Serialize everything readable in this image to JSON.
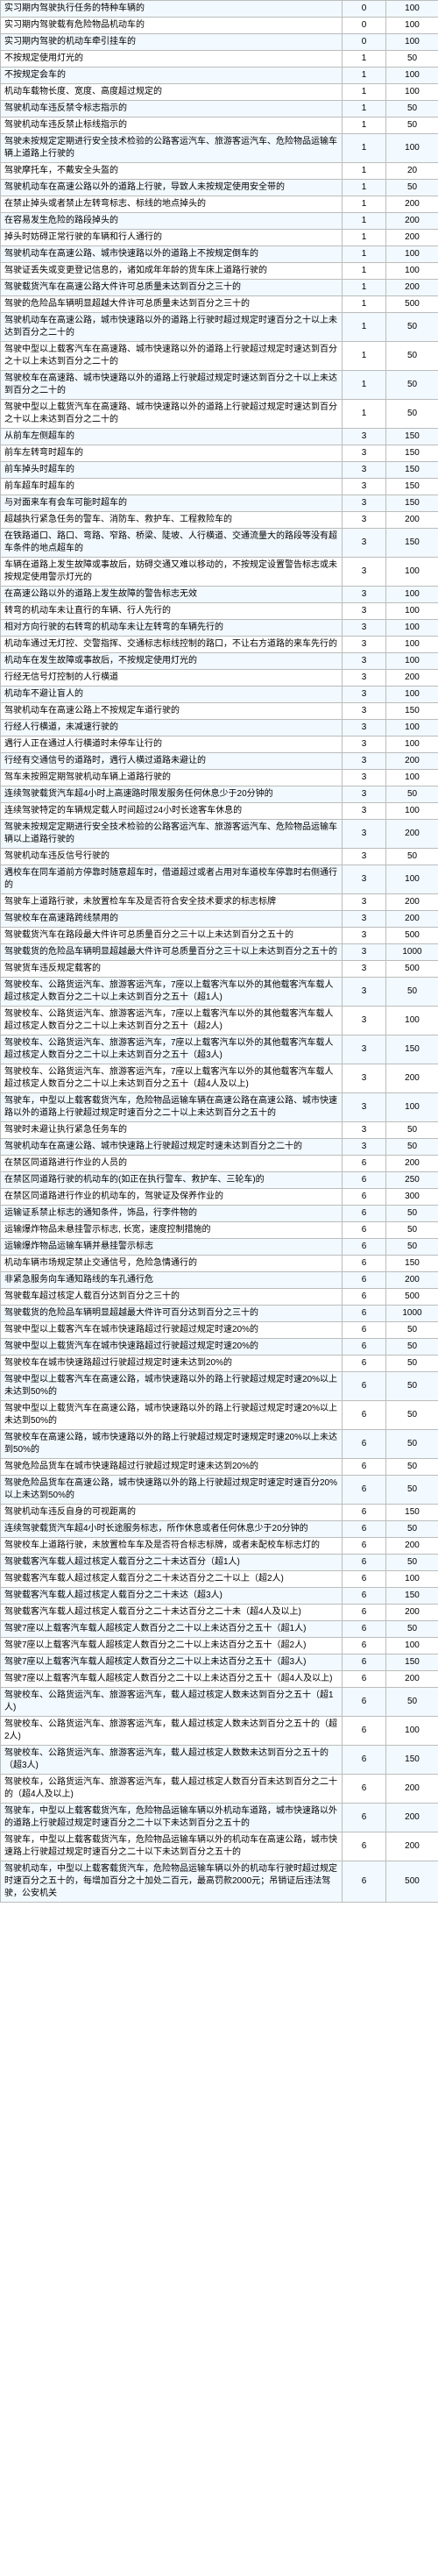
{
  "colors": {
    "altRow": "#f2f9ff",
    "border": "#bcbcbc",
    "text": "#000000",
    "plainRow": "#ffffff"
  },
  "fonts": {
    "family": "Microsoft YaHei, Arial, sans-serif",
    "sizePx": 10
  },
  "columns": {
    "widths": [
      "390px",
      "50px",
      "60px"
    ],
    "align": [
      "left",
      "center",
      "center"
    ]
  },
  "rows": [
    {
      "alt": true,
      "c": [
        "实习期内驾驶执行任务的特种车辆的",
        "0",
        "100"
      ]
    },
    {
      "alt": false,
      "c": [
        "实习期内驾驶载有危险物品机动车的",
        "0",
        "100"
      ]
    },
    {
      "alt": true,
      "c": [
        "实习期内驾驶的机动车牵引挂车的",
        "0",
        "100"
      ]
    },
    {
      "alt": false,
      "c": [
        "不按规定使用灯光的",
        "1",
        "50"
      ]
    },
    {
      "alt": true,
      "c": [
        "不按规定会车的",
        "1",
        "100"
      ]
    },
    {
      "alt": false,
      "c": [
        "机动车载物长度、宽度、高度超过规定的",
        "1",
        "100"
      ]
    },
    {
      "alt": true,
      "c": [
        "驾驶机动车违反禁令标志指示的",
        "1",
        "50"
      ]
    },
    {
      "alt": false,
      "c": [
        "驾驶机动车违反禁止标线指示的",
        "1",
        "50"
      ]
    },
    {
      "alt": true,
      "c": [
        "驾驶未按规定定期进行安全技术检验的公路客运汽车、旅游客运汽车、危险物品运输车辆上道路上行驶的",
        "1",
        "100"
      ]
    },
    {
      "alt": false,
      "c": [
        "驾驶摩托车，不戴安全头盔的",
        "1",
        "20"
      ]
    },
    {
      "alt": true,
      "c": [
        "驾驶机动车在高速公路以外的道路上行驶，导致人未按规定使用安全带的",
        "1",
        "50"
      ]
    },
    {
      "alt": false,
      "c": [
        "在禁止掉头或者禁止左转弯标志、标线的地点掉头的",
        "1",
        "200"
      ]
    },
    {
      "alt": true,
      "c": [
        "在容易发生危险的路段掉头的",
        "1",
        "200"
      ]
    },
    {
      "alt": false,
      "c": [
        "掉头时妨碍正常行驶的车辆和行人通行的",
        "1",
        "200"
      ]
    },
    {
      "alt": true,
      "c": [
        "驾驶机动车在高速公路、城市快速路以外的道路上不按规定倒车的",
        "1",
        "100"
      ]
    },
    {
      "alt": false,
      "c": [
        "驾驶证丢失或变更登记信息的，诸如成年年龄的货车床上道路行驶的",
        "1",
        "100"
      ]
    },
    {
      "alt": true,
      "c": [
        "驾驶载货汽车在高速公路大件许可总质量未达到百分之三十的",
        "1",
        "200"
      ]
    },
    {
      "alt": false,
      "c": [
        "驾驶的危险品车辆明显超越大件许可总质量未达到百分之三十的",
        "1",
        "500"
      ]
    },
    {
      "alt": true,
      "c": [
        "驾驶机动车在高速公路，城市快速路以外的道路上行驶时超过规定时速百分之十以上未达到百分之二十的",
        "1",
        "50"
      ]
    },
    {
      "alt": false,
      "c": [
        "驾驶中型以上载客汽车在高速路、城市快速路以外的道路上行驶超过规定时速达到百分之十以上未达到百分之二十的",
        "1",
        "50"
      ]
    },
    {
      "alt": true,
      "c": [
        "驾驶校车在高速路、城市快速路以外的道路上行驶超过规定时速达到百分之十以上未达到百分之二十的",
        "1",
        "50"
      ]
    },
    {
      "alt": false,
      "c": [
        "驾驶中型以上载货汽车在高速路、城市快速路以外的道路上行驶超过规定时速达到百分之十以上未达到百分之二十的",
        "1",
        "50"
      ]
    },
    {
      "alt": true,
      "c": [
        "从前车左侧超车的",
        "3",
        "150"
      ]
    },
    {
      "alt": false,
      "c": [
        "前车左转弯时超车的",
        "3",
        "150"
      ]
    },
    {
      "alt": true,
      "c": [
        "前车掉头时超车的",
        "3",
        "150"
      ]
    },
    {
      "alt": false,
      "c": [
        "前车超车时超车的",
        "3",
        "150"
      ]
    },
    {
      "alt": true,
      "c": [
        "与对面来车有会车可能时超车的",
        "3",
        "150"
      ]
    },
    {
      "alt": false,
      "c": [
        "超越执行紧急任务的警车、消防车、救护车、工程救险车的",
        "3",
        "200"
      ]
    },
    {
      "alt": true,
      "c": [
        "在铁路道口、路口、弯路、窄路、桥梁、陡坡、人行横道、交通流量大的路段等没有超车条件的地点超车的",
        "3",
        "150"
      ]
    },
    {
      "alt": false,
      "c": [
        "车辆在道路上发生故障或事故后，妨碍交通又难以移动的，不按规定设置警告标志或未按规定使用警示灯光的",
        "3",
        "100"
      ]
    },
    {
      "alt": true,
      "c": [
        "在高速公路以外的道路上发生故障的警告标志无效",
        "3",
        "100"
      ]
    },
    {
      "alt": false,
      "c": [
        "转弯的机动车未让直行的车辆、行人先行的",
        "3",
        "100"
      ]
    },
    {
      "alt": true,
      "c": [
        "相对方向行驶的右转弯的机动车未让左转弯的车辆先行的",
        "3",
        "100"
      ]
    },
    {
      "alt": false,
      "c": [
        "机动车通过无灯控、交警指挥、交通标志标线控制的路口，不让右方道路的来车先行的",
        "3",
        "100"
      ]
    },
    {
      "alt": true,
      "c": [
        "机动车在发生故障或事故后，不按规定使用灯光的",
        "3",
        "100"
      ]
    },
    {
      "alt": false,
      "c": [
        "行经无信号灯控制的人行横道",
        "3",
        "200"
      ]
    },
    {
      "alt": true,
      "c": [
        "机动车不避让盲人的",
        "3",
        "100"
      ]
    },
    {
      "alt": false,
      "c": [
        "驾驶机动车在高速公路上不按规定车道行驶的",
        "3",
        "150"
      ]
    },
    {
      "alt": true,
      "c": [
        "行经人行横道，未减速行驶的",
        "3",
        "100"
      ]
    },
    {
      "alt": false,
      "c": [
        "遇行人正在通过人行横道时未停车让行的",
        "3",
        "100"
      ]
    },
    {
      "alt": true,
      "c": [
        "行经有交通信号的道路时，遇行人横过道路未避让的",
        "3",
        "200"
      ]
    },
    {
      "alt": false,
      "c": [
        "驾车未按照定期驾驶机动车辆上道路行驶的",
        "3",
        "100"
      ]
    },
    {
      "alt": true,
      "c": [
        "连续驾驶载货汽车超4小时上高速路时限发服务任何休息少于20分钟的",
        "3",
        "50"
      ]
    },
    {
      "alt": false,
      "c": [
        "连续驾驶特定的车辆规定载人时间超过24小时长途客车休息的",
        "3",
        "100"
      ]
    },
    {
      "alt": true,
      "c": [
        "驾驶未按规定定期进行安全技术检验的公路客运汽车、旅游客运汽车、危险物品运输车辆以上道路行驶的",
        "3",
        "200"
      ]
    },
    {
      "alt": false,
      "c": [
        "驾驶机动车违反信号行驶的",
        "3",
        "50"
      ]
    },
    {
      "alt": true,
      "c": [
        "遇校车在同车道前方停靠时随意超车时，借道超过或者占用对车道校车停靠时右侧通行的",
        "3",
        "100"
      ]
    },
    {
      "alt": false,
      "c": [
        "驾驶车上道路行驶，未放置检车车及是否符合安全技术要求的标志标牌",
        "3",
        "200"
      ]
    },
    {
      "alt": true,
      "c": [
        "驾驶校车在高速路跨线禁用的",
        "3",
        "200"
      ]
    },
    {
      "alt": false,
      "c": [
        "驾驶载货汽车在路段最大件许可总质量百分之三十以上未达到百分之五十的",
        "3",
        "500"
      ]
    },
    {
      "alt": true,
      "c": [
        "驾驶载货的危险品车辆明显超越最大件许可总质量百分之三十以上未达到百分之五十的",
        "3",
        "1000"
      ]
    },
    {
      "alt": false,
      "c": [
        "驾驶货车违反规定载客的",
        "3",
        "500"
      ]
    },
    {
      "alt": true,
      "c": [
        "驾驶校车、公路货运汽车、旅游客运汽车，7座以上载客汽车以外的其他载客汽车载人超过核定人数百分之二十以上未达到百分之五十（超1人)",
        "3",
        "50"
      ]
    },
    {
      "alt": false,
      "c": [
        "驾驶校车、公路货运汽车、旅游客运汽车，7座以上载客汽车以外的其他载客汽车载人超过核定人数百分之二十以上未达到百分之五十（超2人)",
        "3",
        "100"
      ]
    },
    {
      "alt": true,
      "c": [
        "驾驶校车、公路货运汽车、旅游客运汽车，7座以上载客汽车以外的其他载客汽车载人超过核定人数百分之二十以上未达到百分之五十（超3人)",
        "3",
        "150"
      ]
    },
    {
      "alt": false,
      "c": [
        "驾驶校车、公路货运汽车、旅游客运汽车，7座以上载客汽车以外的其他载客汽车载人超过核定人数百分之二十以上未达到百分之五十（超4人及以上)",
        "3",
        "200"
      ]
    },
    {
      "alt": true,
      "c": [
        "驾驶车，中型以上载客载货汽车，危险物品运输车辆在高速公路在高速公路、城市快速路以外的道路上行驶超过规定时速百分之二十以上未达到百分之五十的",
        "3",
        "100"
      ]
    },
    {
      "alt": false,
      "c": [
        "驾驶时未避让执行紧急任务车的",
        "3",
        "50"
      ]
    },
    {
      "alt": true,
      "c": [
        "驾驶机动车在高速公路、城市快速路上行驶超过规定时速未达到百分之二十的",
        "3",
        "50"
      ]
    },
    {
      "alt": false,
      "c": [
        "在禁区同道路进行作业的人员的",
        "6",
        "200"
      ]
    },
    {
      "alt": true,
      "c": [
        "在禁区同道路行驶的机动车的(如正在执行警车、救护车、三轮车)的",
        "6",
        "250"
      ]
    },
    {
      "alt": false,
      "c": [
        "在禁区同道路进行作业的机动车的，驾驶证及保养作业的",
        "6",
        "300"
      ]
    },
    {
      "alt": true,
      "c": [
        "运输证系禁止标志的通知条件，饰品，行李件物的",
        "6",
        "50"
      ]
    },
    {
      "alt": false,
      "c": [
        "运输爆炸物品未悬挂警示标志, 长宽，速度控制措施的",
        "6",
        "50"
      ]
    },
    {
      "alt": true,
      "c": [
        "运输爆炸物品运输车辆并悬挂警示标志",
        "6",
        "50"
      ]
    },
    {
      "alt": false,
      "c": [
        "机动车辆市场规定禁止交通信号，危险急情通行的",
        "6",
        "150"
      ]
    },
    {
      "alt": true,
      "c": [
        "非紧急服务向车通知路线的车孔通行危",
        "6",
        "200"
      ]
    },
    {
      "alt": false,
      "c": [
        "驾驶载车超过核定人载百分达到百分之三十的",
        "6",
        "500"
      ]
    },
    {
      "alt": true,
      "c": [
        "驾驶载货的危险品车辆明显超越最大件许可百分达到百分之三十的",
        "6",
        "1000"
      ]
    },
    {
      "alt": false,
      "c": [
        "驾驶中型以上载客汽车在城市快速路超过行驶超过规定时速20%的",
        "6",
        "50"
      ]
    },
    {
      "alt": true,
      "c": [
        "驾驶中型以上载货汽车在城市快速路超过行驶超过规定时速20%的",
        "6",
        "50"
      ]
    },
    {
      "alt": false,
      "c": [
        "驾驶校车在城市快速路超过行驶超过规定时速未达到20%的",
        "6",
        "50"
      ]
    },
    {
      "alt": true,
      "c": [
        "驾驶中型以上载客汽车在高速公路，城市快速路以外的路上行驶超过规定时速20%以上未达到50%的",
        "6",
        "50"
      ]
    },
    {
      "alt": false,
      "c": [
        "驾驶中型以上载货汽车在高速公路，城市快速路以外的路上行驶超过规定时速20%以上未达到50%的",
        "6",
        "50"
      ]
    },
    {
      "alt": true,
      "c": [
        "驾驶校车在高速公路，城市快速路以外的路上行驶超过规定时速规定时速20%以上未达到50%的",
        "6",
        "50"
      ]
    },
    {
      "alt": false,
      "c": [
        "驾驶危险品货车在城市快速路超过行驶超过规定时速未达到20%的",
        "6",
        "50"
      ]
    },
    {
      "alt": true,
      "c": [
        "驾驶危险品货车在高速公路，城市快速路以外的路上行驶超过规定时速定时速百分20%以上未达到50%的",
        "6",
        "50"
      ]
    },
    {
      "alt": false,
      "c": [
        "驾驶机动车违反自身的可视距离的",
        "6",
        "150"
      ]
    },
    {
      "alt": true,
      "c": [
        "连续驾驶载货汽车超4小时长途服务标志，所作休息或者任何休息少于20分钟的",
        "6",
        "50"
      ]
    },
    {
      "alt": false,
      "c": [
        "驾驶校车上道路行驶，未放置检车车及是否符合标志标牌，或者未配校车标志灯的",
        "6",
        "200"
      ]
    },
    {
      "alt": true,
      "c": [
        "驾驶载客汽车载人超过核定人载百分之二十未达百分（超1人)",
        "6",
        "50"
      ]
    },
    {
      "alt": false,
      "c": [
        "驾驶载客汽车载人超过核定人载百分之二十未达百分之二十以上（超2人)",
        "6",
        "100"
      ]
    },
    {
      "alt": true,
      "c": [
        "驾驶载客汽车载人超过核定人载百分之二十未达（超3人)",
        "6",
        "150"
      ]
    },
    {
      "alt": false,
      "c": [
        "驾驶载客汽车载人超过核定人载百分之二十未达百分之二十未（超4人及以上)",
        "6",
        "200"
      ]
    },
    {
      "alt": true,
      "c": [
        "驾驶7座以上载客汽车载人超核定人数百分之二十以上未达百分之五十（超1人)",
        "6",
        "50"
      ]
    },
    {
      "alt": false,
      "c": [
        "驾驶7座以上载客汽车载人超核定人数百分之二十以上未达百分之五十（超2人)",
        "6",
        "100"
      ]
    },
    {
      "alt": true,
      "c": [
        "驾驶7座以上载客汽车载人超核定人数百分之二十以上未达百分之五十（超3人)",
        "6",
        "150"
      ]
    },
    {
      "alt": false,
      "c": [
        "驾驶7座以上载客汽车载人超核定人数百分之二十以上未达百分之五十（超4人及以上)",
        "6",
        "200"
      ]
    },
    {
      "alt": true,
      "c": [
        "驾驶校车、公路货运汽车、旅游客运汽车，载人超过核定人数未达到百分之五十（超1人)",
        "6",
        "50"
      ]
    },
    {
      "alt": false,
      "c": [
        "驾驶校车、公路货运汽车、旅游客运汽车，载人超过核定人数未达到百分之五十的（超2人)",
        "6",
        "100"
      ]
    },
    {
      "alt": true,
      "c": [
        "驾驶校车、公路货运汽车、旅游客运汽车，载人超过核定人数数未达到百分之五十的（超3人)",
        "6",
        "150"
      ]
    },
    {
      "alt": false,
      "c": [
        "驾驶校车，公路货运汽车、旅游客运汽车，载人超过核定人数百分百未达到百分之二十的（超4人及以上)",
        "6",
        "200"
      ]
    },
    {
      "alt": true,
      "c": [
        "驾驶车，中型以上载客载货汽车，危险物品运输车辆以外机动车道路，城市快速路以外的道路上行驶超过规定时速百分之二十以下未达到百分之五十的",
        "6",
        "200"
      ]
    },
    {
      "alt": false,
      "c": [
        "驾驶车，中型以上载客载货汽车，危险物品运输车辆以外的机动车在高速公路，城市快速路上行驶超过规定时速百分之二十以下未达到百分之五十的",
        "6",
        "200"
      ]
    },
    {
      "alt": true,
      "c": [
        "驾驶机动车，中型以上载客载货汽车，危险物品运输车辆以外的机动车行驶时超过规定时速百分之五十的，每增加百分之十加处二百元，最高罚款2000元；吊销证后违法驾驶，公安机关",
        "6",
        "500"
      ]
    }
  ]
}
